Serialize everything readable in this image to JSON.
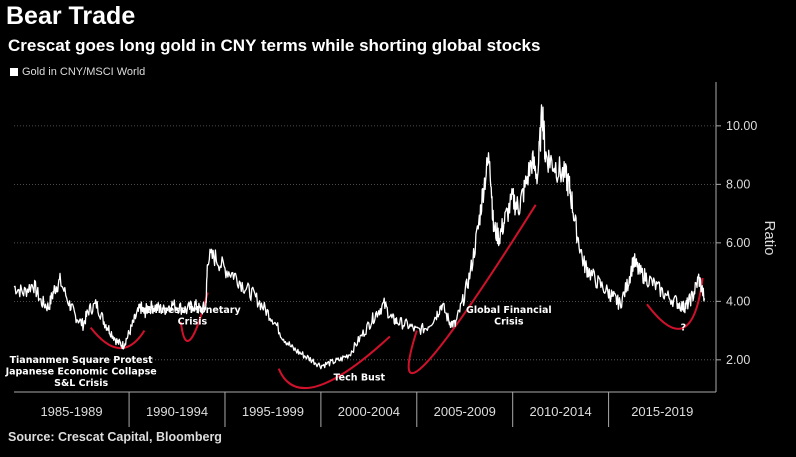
{
  "header": {
    "title": "Bear Trade",
    "subtitle": "Crescat goes long gold in CNY terms while shorting global stocks"
  },
  "footer": {
    "source": "Source: Crescat Capital, Bloomberg"
  },
  "chart_data": {
    "type": "line",
    "ylabel": "Ratio",
    "ylim": [
      0.9,
      11.5
    ],
    "yticks": [
      "2.00",
      "4.00",
      "6.00",
      "8.00",
      "10.00"
    ],
    "ytick_values": [
      2,
      4,
      6,
      8,
      10
    ],
    "xlim": [
      1984,
      2020.6
    ],
    "period_labels": [
      "1985-1989",
      "1990-1994",
      "1995-1999",
      "2000-2004",
      "2005-2009",
      "2010-2014",
      "2015-2019"
    ],
    "period_starts": [
      1984,
      1990,
      1995,
      2000,
      2005,
      2010,
      2015,
      2020.6
    ],
    "grid": true,
    "series": [
      {
        "name": "Gold in CNY/MSCI World",
        "color": "#ffffff",
        "x": [
          1984.0,
          1984.5,
          1985.0,
          1985.4,
          1985.8,
          1986.1,
          1986.4,
          1986.9,
          1987.2,
          1987.6,
          1987.9,
          1988.3,
          1988.7,
          1989.0,
          1989.4,
          1989.7,
          1990.0,
          1990.3,
          1990.6,
          1990.8,
          1991.0,
          1991.4,
          1991.8,
          1992.2,
          1992.6,
          1993.0,
          1993.4,
          1993.7,
          1994.0,
          1994.1,
          1994.5,
          1995.0,
          1995.5,
          1996.0,
          1996.5,
          1997.0,
          1997.5,
          1998.0,
          1998.5,
          1999.0,
          1999.5,
          2000.0,
          2000.5,
          2001.0,
          2001.5,
          2002.0,
          2002.5,
          2002.9,
          2003.3,
          2003.7,
          2004.0,
          2004.5,
          2005.0,
          2005.5,
          2006.0,
          2006.3,
          2006.7,
          2007.0,
          2007.4,
          2007.8,
          2008.2,
          2008.5,
          2008.8,
          2009.0,
          2009.3,
          2009.6,
          2010.0,
          2010.3,
          2010.6,
          2011.0,
          2011.3,
          2011.55,
          2011.7,
          2012.0,
          2012.4,
          2012.8,
          2013.0,
          2013.3,
          2013.7,
          2014.0,
          2014.5,
          2015.0,
          2015.3,
          2015.6,
          2016.0,
          2016.3,
          2016.6,
          2017.0,
          2017.5,
          2018.0,
          2018.5,
          2018.9,
          2019.1,
          2019.4,
          2019.7,
          2020.0
        ],
        "y": [
          4.5,
          4.3,
          4.6,
          4.0,
          3.8,
          4.4,
          4.7,
          3.9,
          3.5,
          3.2,
          3.7,
          3.9,
          3.3,
          3.0,
          2.6,
          2.5,
          2.9,
          3.4,
          3.8,
          3.6,
          3.8,
          3.8,
          3.7,
          3.9,
          3.8,
          3.7,
          3.9,
          3.7,
          3.8,
          5.5,
          5.5,
          5.1,
          4.9,
          4.5,
          4.2,
          3.8,
          3.4,
          2.8,
          2.4,
          2.2,
          2.0,
          1.8,
          1.9,
          2.0,
          2.2,
          2.7,
          3.2,
          3.6,
          3.9,
          3.4,
          3.3,
          3.2,
          3.0,
          3.1,
          3.5,
          3.9,
          3.3,
          3.2,
          4.0,
          5.0,
          6.5,
          8.0,
          9.0,
          6.5,
          6.2,
          6.8,
          7.5,
          7.2,
          7.8,
          8.8,
          8.3,
          10.6,
          9.0,
          8.8,
          8.5,
          8.2,
          7.8,
          6.5,
          5.3,
          5.0,
          4.6,
          4.3,
          4.1,
          3.9,
          4.6,
          5.4,
          5.0,
          4.8,
          4.5,
          4.2,
          4.0,
          3.8,
          3.9,
          4.2,
          4.8,
          4.1
        ]
      }
    ],
    "annotations": [
      {
        "lines": [
          "Tiananmen Square Protest",
          "Japanese Economic Collapse",
          "S&L Crisis"
        ],
        "x": 1987.5,
        "y": 1.9
      },
      {
        "lines": [
          "Chinese Monetary",
          "Crisis"
        ],
        "x": 1993.3,
        "y": 3.6
      },
      {
        "lines": [
          "Tech Bust"
        ],
        "x": 2002.0,
        "y": 1.3
      },
      {
        "lines": [
          "Global Financial",
          "Crisis"
        ],
        "x": 2009.8,
        "y": 3.6
      },
      {
        "lines": [
          "?"
        ],
        "x": 2018.9,
        "y": 3.0
      }
    ],
    "highlight_arcs": [
      {
        "x": [
          1988.0,
          1989.5,
          1990.8
        ],
        "y": [
          3.1,
          2.4,
          3.0
        ]
      },
      {
        "x": [
          1992.7,
          1993.2,
          1994.1
        ],
        "y": [
          3.3,
          2.7,
          4.3
        ]
      },
      {
        "x": [
          1997.8,
          1999.8,
          2003.6
        ],
        "y": [
          1.7,
          1.1,
          2.8
        ]
      },
      {
        "x": [
          2005.0,
          2005.5,
          2011.2
        ],
        "y": [
          3.0,
          1.9,
          7.3
        ]
      },
      {
        "x": [
          2017.0,
          2018.9,
          2019.9
        ],
        "y": [
          3.9,
          3.1,
          4.8
        ]
      }
    ],
    "highlight_color": "#d0112b"
  }
}
